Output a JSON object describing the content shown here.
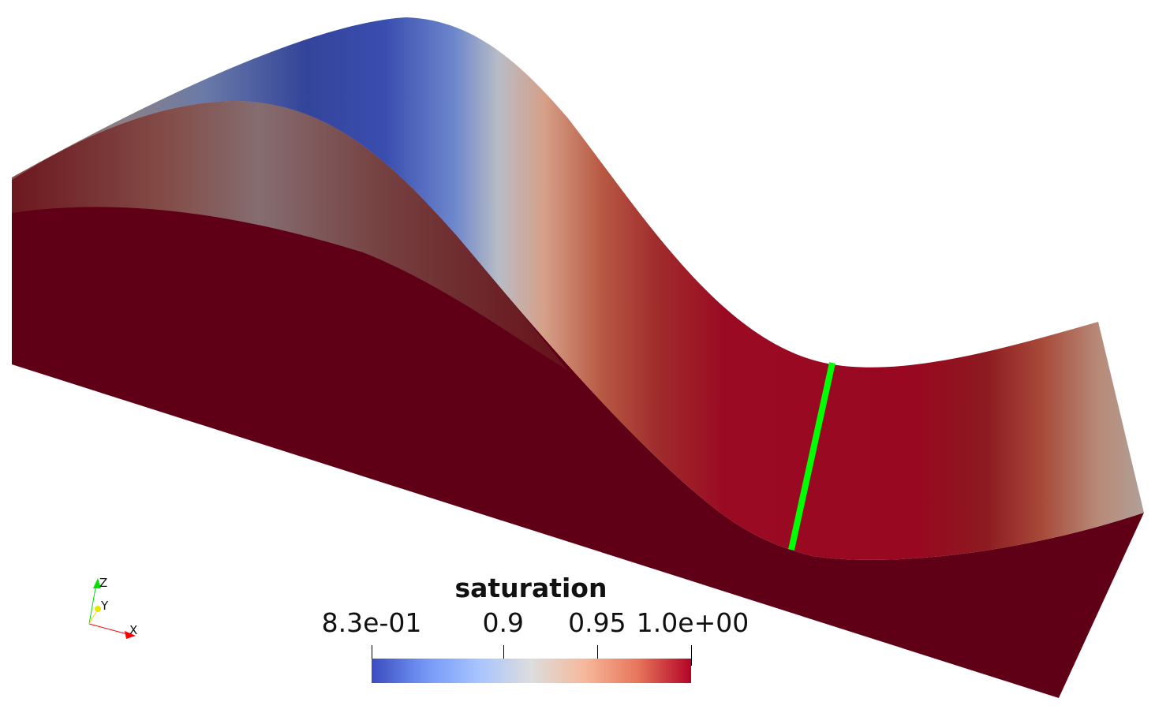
{
  "colorbar": {
    "title": "saturation",
    "labels": [
      {
        "text": "8.3e-01",
        "value": 0.83
      },
      {
        "text": "0.9",
        "value": 0.9
      },
      {
        "text": "0.95",
        "value": 0.95
      },
      {
        "text": "1.0e+00",
        "value": 1.0
      }
    ],
    "range": [
      0.83,
      1.0
    ],
    "colormap": [
      "#3b4cc0",
      "#7396f5",
      "#a6c4fe",
      "#dddddd",
      "#f6b89b",
      "#e7755b",
      "#b40426"
    ]
  },
  "orientation_axes": {
    "x": "X",
    "y": "Y",
    "z": "Z",
    "x_color": "#ff0000",
    "y_color": "#e6e600",
    "z_color": "#00e000"
  },
  "highlight_line_color": "#00ff00"
}
